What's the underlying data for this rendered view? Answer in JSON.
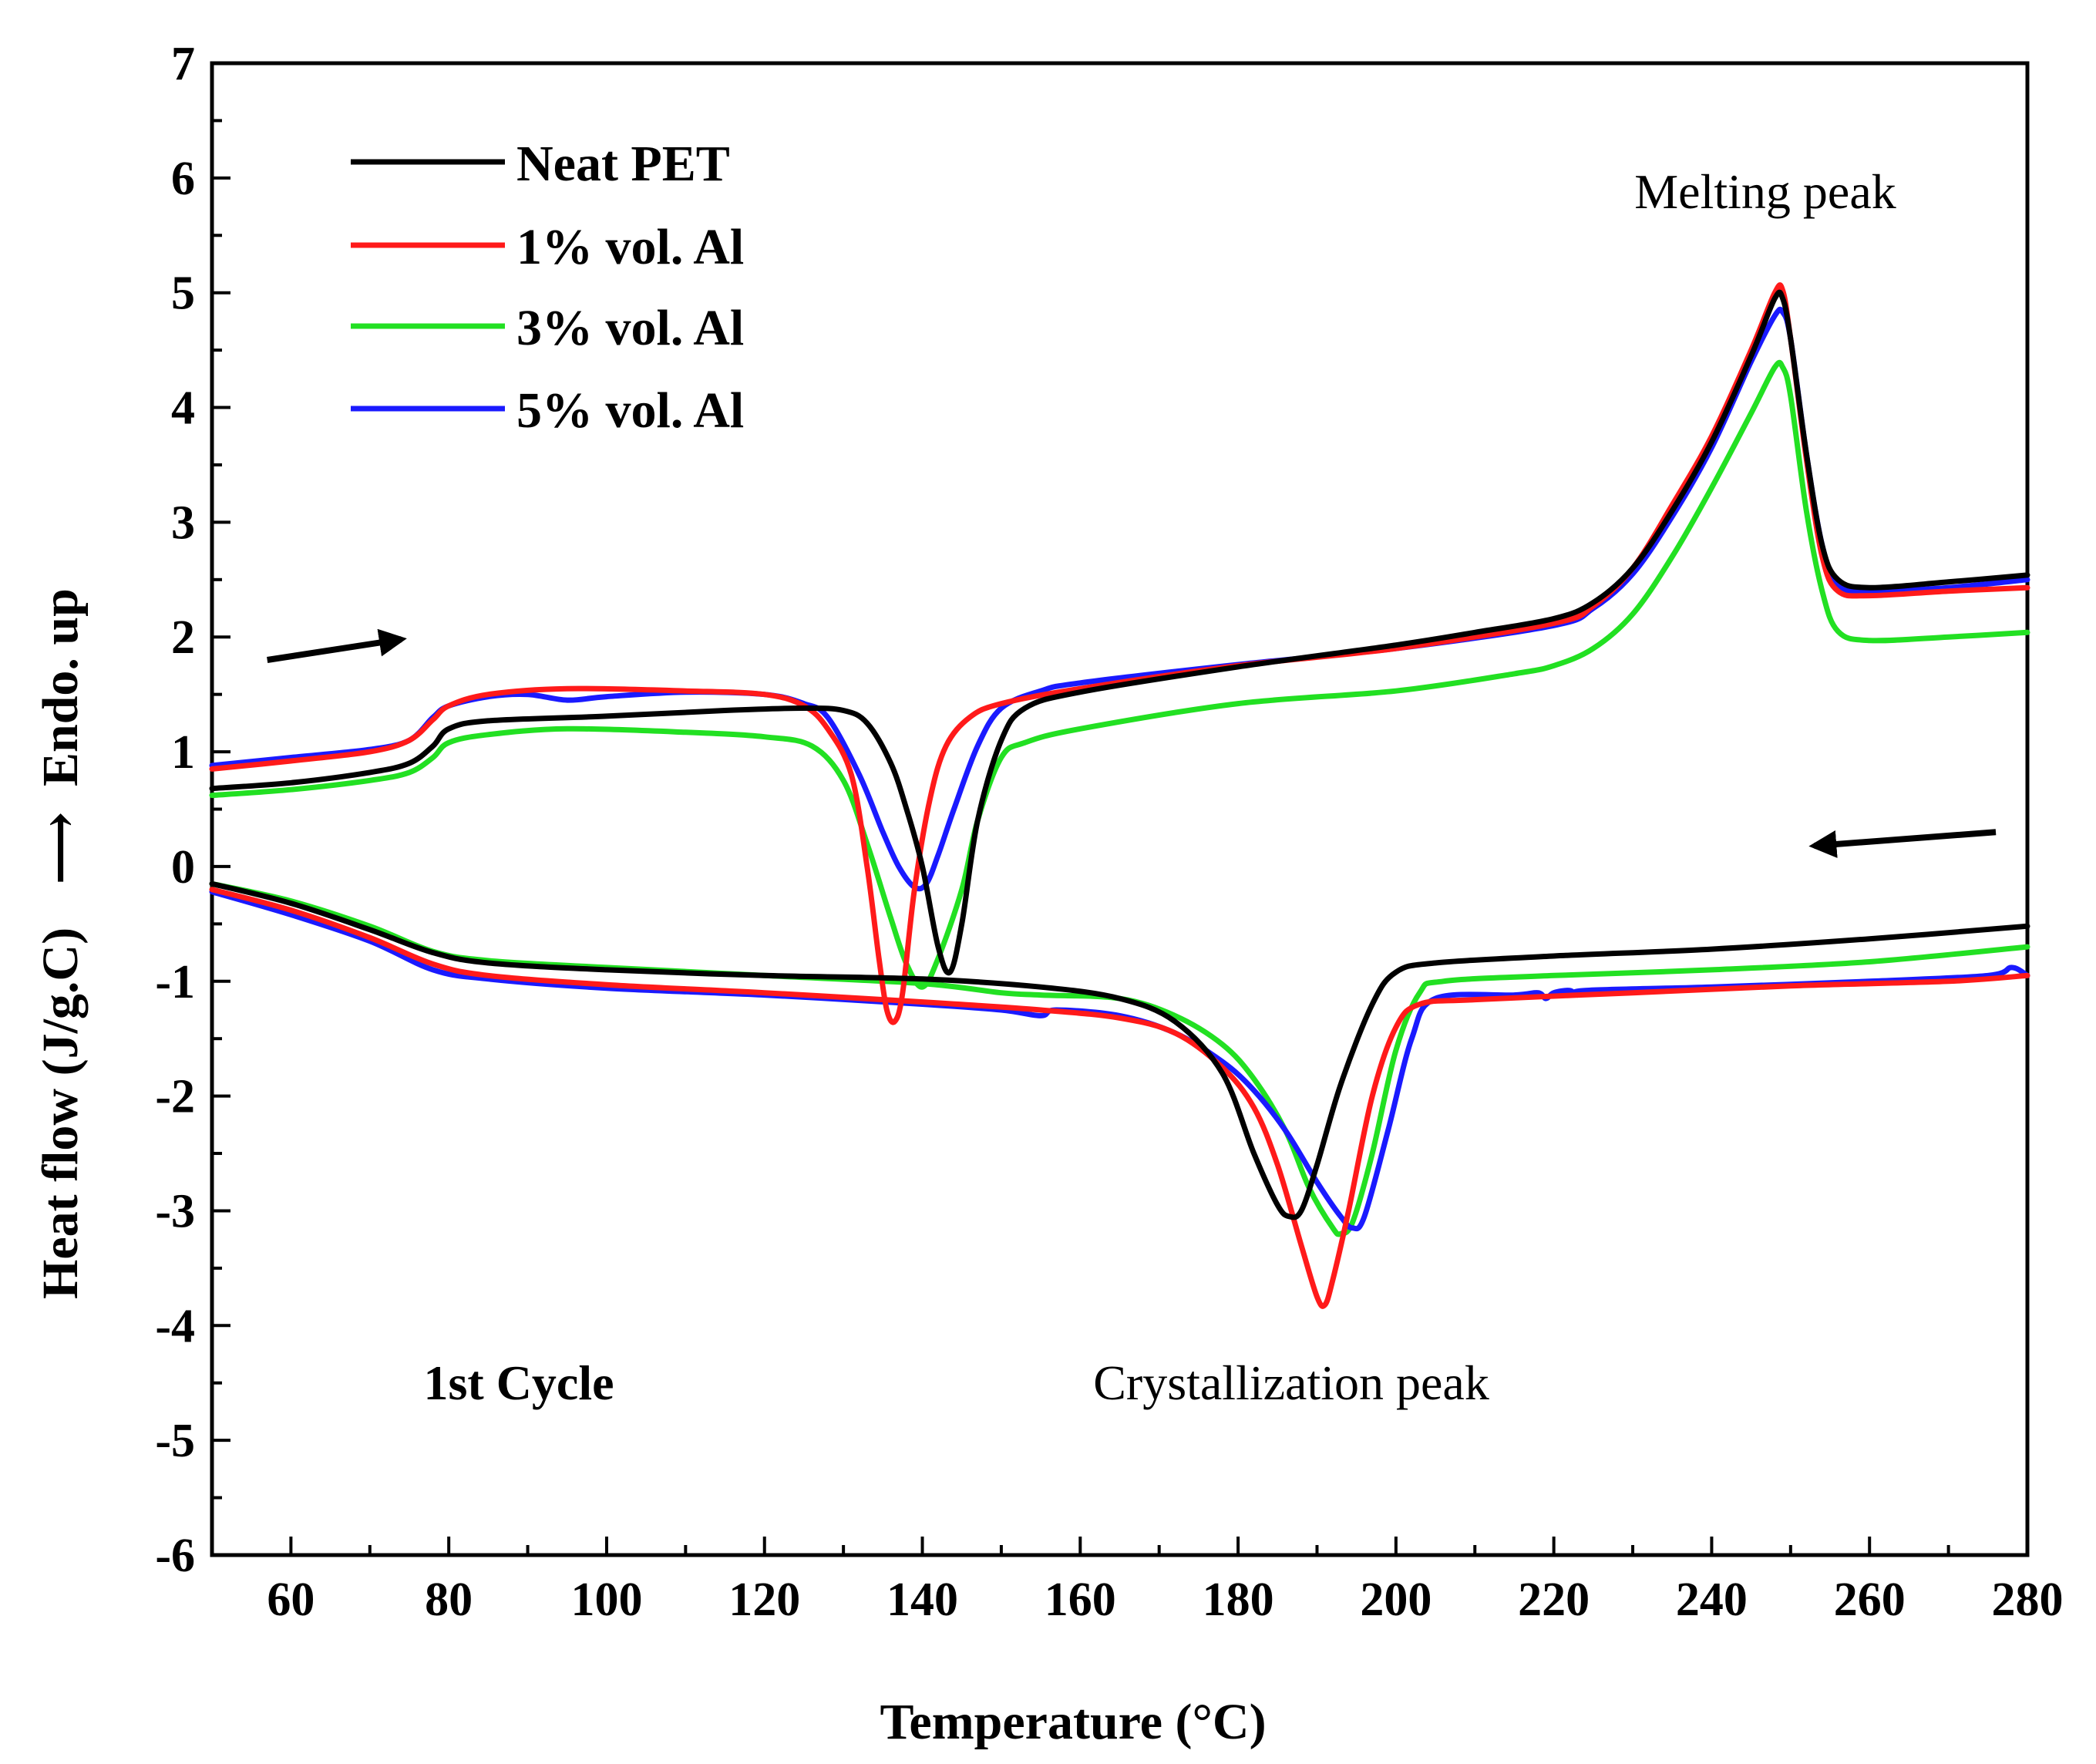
{
  "chart_data": {
    "type": "line",
    "title": "",
    "xlabel": "Temperature (°C)",
    "ylabel_left": "Heat flow (J/g.C)",
    "ylabel_arrow": "⟶",
    "ylabel_right": "Endo. up",
    "xlim": [
      50,
      280
    ],
    "ylim": [
      -6,
      7
    ],
    "xticks": [
      60,
      80,
      100,
      120,
      140,
      160,
      180,
      200,
      220,
      240,
      260,
      280
    ],
    "yticks": [
      -6,
      -5,
      -4,
      -3,
      -2,
      -1,
      0,
      1,
      2,
      3,
      4,
      5,
      6,
      7
    ],
    "grid": false,
    "legend_position": "top-left",
    "annotations": {
      "melting": "Melting peak",
      "crystallization": "Crystallization peak",
      "cycle": "1st Cycle"
    },
    "arrows": [
      {
        "direction": "heating",
        "from": [
          57,
          1.8
        ],
        "to": [
          74,
          1.98
        ]
      },
      {
        "direction": "cooling",
        "from": [
          276,
          0.3
        ],
        "to": [
          253,
          0.18
        ]
      }
    ],
    "series": [
      {
        "name": "Neat PET",
        "color": "#000000",
        "heating": [
          [
            50,
            0.68
          ],
          [
            60,
            0.73
          ],
          [
            70,
            0.82
          ],
          [
            75,
            0.9
          ],
          [
            78,
            1.05
          ],
          [
            80,
            1.2
          ],
          [
            85,
            1.27
          ],
          [
            100,
            1.31
          ],
          [
            115,
            1.36
          ],
          [
            125,
            1.38
          ],
          [
            130,
            1.36
          ],
          [
            133,
            1.25
          ],
          [
            136,
            0.9
          ],
          [
            138,
            0.5
          ],
          [
            140,
            0.0
          ],
          [
            142,
            -0.7
          ],
          [
            143.5,
            -0.92
          ],
          [
            145,
            -0.5
          ],
          [
            147,
            0.4
          ],
          [
            150,
            1.1
          ],
          [
            153,
            1.38
          ],
          [
            160,
            1.52
          ],
          [
            180,
            1.74
          ],
          [
            200,
            1.93
          ],
          [
            210,
            2.04
          ],
          [
            220,
            2.16
          ],
          [
            225,
            2.3
          ],
          [
            230,
            2.6
          ],
          [
            235,
            3.1
          ],
          [
            240,
            3.7
          ],
          [
            245,
            4.45
          ],
          [
            248,
            4.95
          ],
          [
            249,
            4.95
          ],
          [
            250,
            4.6
          ],
          [
            252,
            3.6
          ],
          [
            254,
            2.8
          ],
          [
            256,
            2.5
          ],
          [
            260,
            2.43
          ],
          [
            270,
            2.48
          ],
          [
            280,
            2.54
          ]
        ],
        "cooling": [
          [
            50,
            -0.15
          ],
          [
            60,
            -0.32
          ],
          [
            70,
            -0.55
          ],
          [
            78,
            -0.75
          ],
          [
            85,
            -0.84
          ],
          [
            100,
            -0.9
          ],
          [
            120,
            -0.95
          ],
          [
            140,
            -0.98
          ],
          [
            155,
            -1.05
          ],
          [
            165,
            -1.15
          ],
          [
            172,
            -1.35
          ],
          [
            178,
            -1.8
          ],
          [
            182,
            -2.5
          ],
          [
            185,
            -2.95
          ],
          [
            186.5,
            -3.05
          ],
          [
            188,
            -3.0
          ],
          [
            190,
            -2.6
          ],
          [
            193,
            -1.9
          ],
          [
            197,
            -1.2
          ],
          [
            200,
            -0.92
          ],
          [
            205,
            -0.84
          ],
          [
            220,
            -0.78
          ],
          [
            240,
            -0.72
          ],
          [
            260,
            -0.63
          ],
          [
            280,
            -0.52
          ]
        ]
      },
      {
        "name": "1% vol. Al",
        "color": "#ff1a1a",
        "heating": [
          [
            50,
            0.85
          ],
          [
            60,
            0.92
          ],
          [
            70,
            1.0
          ],
          [
            75,
            1.1
          ],
          [
            78,
            1.28
          ],
          [
            80,
            1.4
          ],
          [
            85,
            1.5
          ],
          [
            95,
            1.55
          ],
          [
            110,
            1.53
          ],
          [
            120,
            1.5
          ],
          [
            125,
            1.4
          ],
          [
            128,
            1.2
          ],
          [
            131,
            0.8
          ],
          [
            133,
            0.0
          ],
          [
            134.5,
            -0.8
          ],
          [
            135.5,
            -1.25
          ],
          [
            136.5,
            -1.35
          ],
          [
            137.5,
            -1.1
          ],
          [
            139,
            -0.2
          ],
          [
            141,
            0.6
          ],
          [
            143,
            1.05
          ],
          [
            146,
            1.3
          ],
          [
            150,
            1.42
          ],
          [
            160,
            1.55
          ],
          [
            180,
            1.75
          ],
          [
            200,
            1.9
          ],
          [
            220,
            2.12
          ],
          [
            225,
            2.27
          ],
          [
            230,
            2.6
          ],
          [
            235,
            3.15
          ],
          [
            240,
            3.75
          ],
          [
            245,
            4.5
          ],
          [
            248,
            5.0
          ],
          [
            249,
            5.02
          ],
          [
            250,
            4.6
          ],
          [
            252,
            3.55
          ],
          [
            254,
            2.7
          ],
          [
            256,
            2.4
          ],
          [
            260,
            2.36
          ],
          [
            270,
            2.4
          ],
          [
            280,
            2.43
          ]
        ],
        "cooling": [
          [
            50,
            -0.2
          ],
          [
            60,
            -0.38
          ],
          [
            70,
            -0.62
          ],
          [
            78,
            -0.85
          ],
          [
            85,
            -0.95
          ],
          [
            100,
            -1.03
          ],
          [
            120,
            -1.1
          ],
          [
            140,
            -1.18
          ],
          [
            155,
            -1.25
          ],
          [
            165,
            -1.32
          ],
          [
            172,
            -1.45
          ],
          [
            178,
            -1.75
          ],
          [
            182,
            -2.1
          ],
          [
            185,
            -2.6
          ],
          [
            188,
            -3.3
          ],
          [
            190,
            -3.75
          ],
          [
            191,
            -3.82
          ],
          [
            192,
            -3.6
          ],
          [
            194,
            -3.0
          ],
          [
            197,
            -2.0
          ],
          [
            200,
            -1.4
          ],
          [
            203,
            -1.2
          ],
          [
            210,
            -1.16
          ],
          [
            230,
            -1.1
          ],
          [
            250,
            -1.04
          ],
          [
            270,
            -1.0
          ],
          [
            280,
            -0.95
          ]
        ]
      },
      {
        "name": "3% vol. Al",
        "color": "#22e022",
        "heating": [
          [
            50,
            0.62
          ],
          [
            60,
            0.67
          ],
          [
            70,
            0.75
          ],
          [
            75,
            0.82
          ],
          [
            78,
            0.95
          ],
          [
            80,
            1.08
          ],
          [
            85,
            1.15
          ],
          [
            95,
            1.2
          ],
          [
            110,
            1.17
          ],
          [
            120,
            1.13
          ],
          [
            126,
            1.05
          ],
          [
            130,
            0.75
          ],
          [
            133,
            0.2
          ],
          [
            136,
            -0.45
          ],
          [
            138,
            -0.85
          ],
          [
            140,
            -1.05
          ],
          [
            142,
            -0.8
          ],
          [
            145,
            -0.2
          ],
          [
            147,
            0.4
          ],
          [
            150,
            0.95
          ],
          [
            153,
            1.08
          ],
          [
            160,
            1.2
          ],
          [
            180,
            1.42
          ],
          [
            200,
            1.53
          ],
          [
            215,
            1.68
          ],
          [
            220,
            1.75
          ],
          [
            225,
            1.9
          ],
          [
            230,
            2.2
          ],
          [
            235,
            2.7
          ],
          [
            240,
            3.3
          ],
          [
            245,
            3.95
          ],
          [
            248,
            4.35
          ],
          [
            249,
            4.35
          ],
          [
            250,
            4.1
          ],
          [
            252,
            3.1
          ],
          [
            254,
            2.4
          ],
          [
            256,
            2.05
          ],
          [
            260,
            1.97
          ],
          [
            270,
            2.0
          ],
          [
            280,
            2.04
          ]
        ],
        "cooling": [
          [
            50,
            -0.15
          ],
          [
            60,
            -0.3
          ],
          [
            70,
            -0.52
          ],
          [
            78,
            -0.74
          ],
          [
            85,
            -0.82
          ],
          [
            100,
            -0.88
          ],
          [
            120,
            -0.95
          ],
          [
            140,
            -1.02
          ],
          [
            150,
            -1.1
          ],
          [
            155,
            -1.12
          ],
          [
            165,
            -1.15
          ],
          [
            172,
            -1.3
          ],
          [
            178,
            -1.55
          ],
          [
            182,
            -1.85
          ],
          [
            186,
            -2.3
          ],
          [
            189,
            -2.8
          ],
          [
            192,
            -3.15
          ],
          [
            193,
            -3.2
          ],
          [
            194.5,
            -3.1
          ],
          [
            197,
            -2.5
          ],
          [
            200,
            -1.6
          ],
          [
            203,
            -1.1
          ],
          [
            206,
            -1.0
          ],
          [
            220,
            -0.95
          ],
          [
            240,
            -0.9
          ],
          [
            260,
            -0.83
          ],
          [
            280,
            -0.7
          ]
        ]
      },
      {
        "name": "5% vol. Al",
        "color": "#1a1aff",
        "heating": [
          [
            50,
            0.88
          ],
          [
            60,
            0.95
          ],
          [
            70,
            1.02
          ],
          [
            75,
            1.1
          ],
          [
            78,
            1.3
          ],
          [
            80,
            1.4
          ],
          [
            85,
            1.48
          ],
          [
            90,
            1.5
          ],
          [
            95,
            1.45
          ],
          [
            100,
            1.48
          ],
          [
            110,
            1.52
          ],
          [
            120,
            1.5
          ],
          [
            125,
            1.42
          ],
          [
            128,
            1.3
          ],
          [
            132,
            0.8
          ],
          [
            135,
            0.3
          ],
          [
            137,
            0.0
          ],
          [
            139,
            -0.18
          ],
          [
            140.5,
            -0.15
          ],
          [
            142,
            0.1
          ],
          [
            144,
            0.5
          ],
          [
            147,
            1.05
          ],
          [
            150,
            1.38
          ],
          [
            155,
            1.53
          ],
          [
            160,
            1.6
          ],
          [
            180,
            1.76
          ],
          [
            200,
            1.9
          ],
          [
            220,
            2.1
          ],
          [
            225,
            2.25
          ],
          [
            230,
            2.55
          ],
          [
            235,
            3.05
          ],
          [
            240,
            3.65
          ],
          [
            245,
            4.4
          ],
          [
            248,
            4.8
          ],
          [
            249,
            4.83
          ],
          [
            250,
            4.6
          ],
          [
            252,
            3.6
          ],
          [
            254,
            2.8
          ],
          [
            256,
            2.45
          ],
          [
            260,
            2.4
          ],
          [
            270,
            2.43
          ],
          [
            280,
            2.5
          ]
        ],
        "cooling": [
          [
            50,
            -0.22
          ],
          [
            60,
            -0.42
          ],
          [
            70,
            -0.65
          ],
          [
            78,
            -0.9
          ],
          [
            85,
            -0.98
          ],
          [
            100,
            -1.06
          ],
          [
            120,
            -1.12
          ],
          [
            140,
            -1.2
          ],
          [
            150,
            -1.25
          ],
          [
            155,
            -1.3
          ],
          [
            157,
            -1.25
          ],
          [
            165,
            -1.3
          ],
          [
            172,
            -1.45
          ],
          [
            178,
            -1.7
          ],
          [
            182,
            -1.95
          ],
          [
            186,
            -2.3
          ],
          [
            190,
            -2.75
          ],
          [
            193,
            -3.05
          ],
          [
            194.5,
            -3.15
          ],
          [
            196,
            -3.05
          ],
          [
            199,
            -2.3
          ],
          [
            202,
            -1.5
          ],
          [
            205,
            -1.15
          ],
          [
            215,
            -1.12
          ],
          [
            218,
            -1.1
          ],
          [
            219,
            -1.15
          ],
          [
            220,
            -1.1
          ],
          [
            222,
            -1.08
          ],
          [
            223,
            -1.12
          ],
          [
            224,
            -1.08
          ],
          [
            240,
            -1.05
          ],
          [
            260,
            -1.0
          ],
          [
            275,
            -0.95
          ],
          [
            278,
            -0.88
          ],
          [
            280,
            -0.95
          ]
        ]
      }
    ]
  }
}
